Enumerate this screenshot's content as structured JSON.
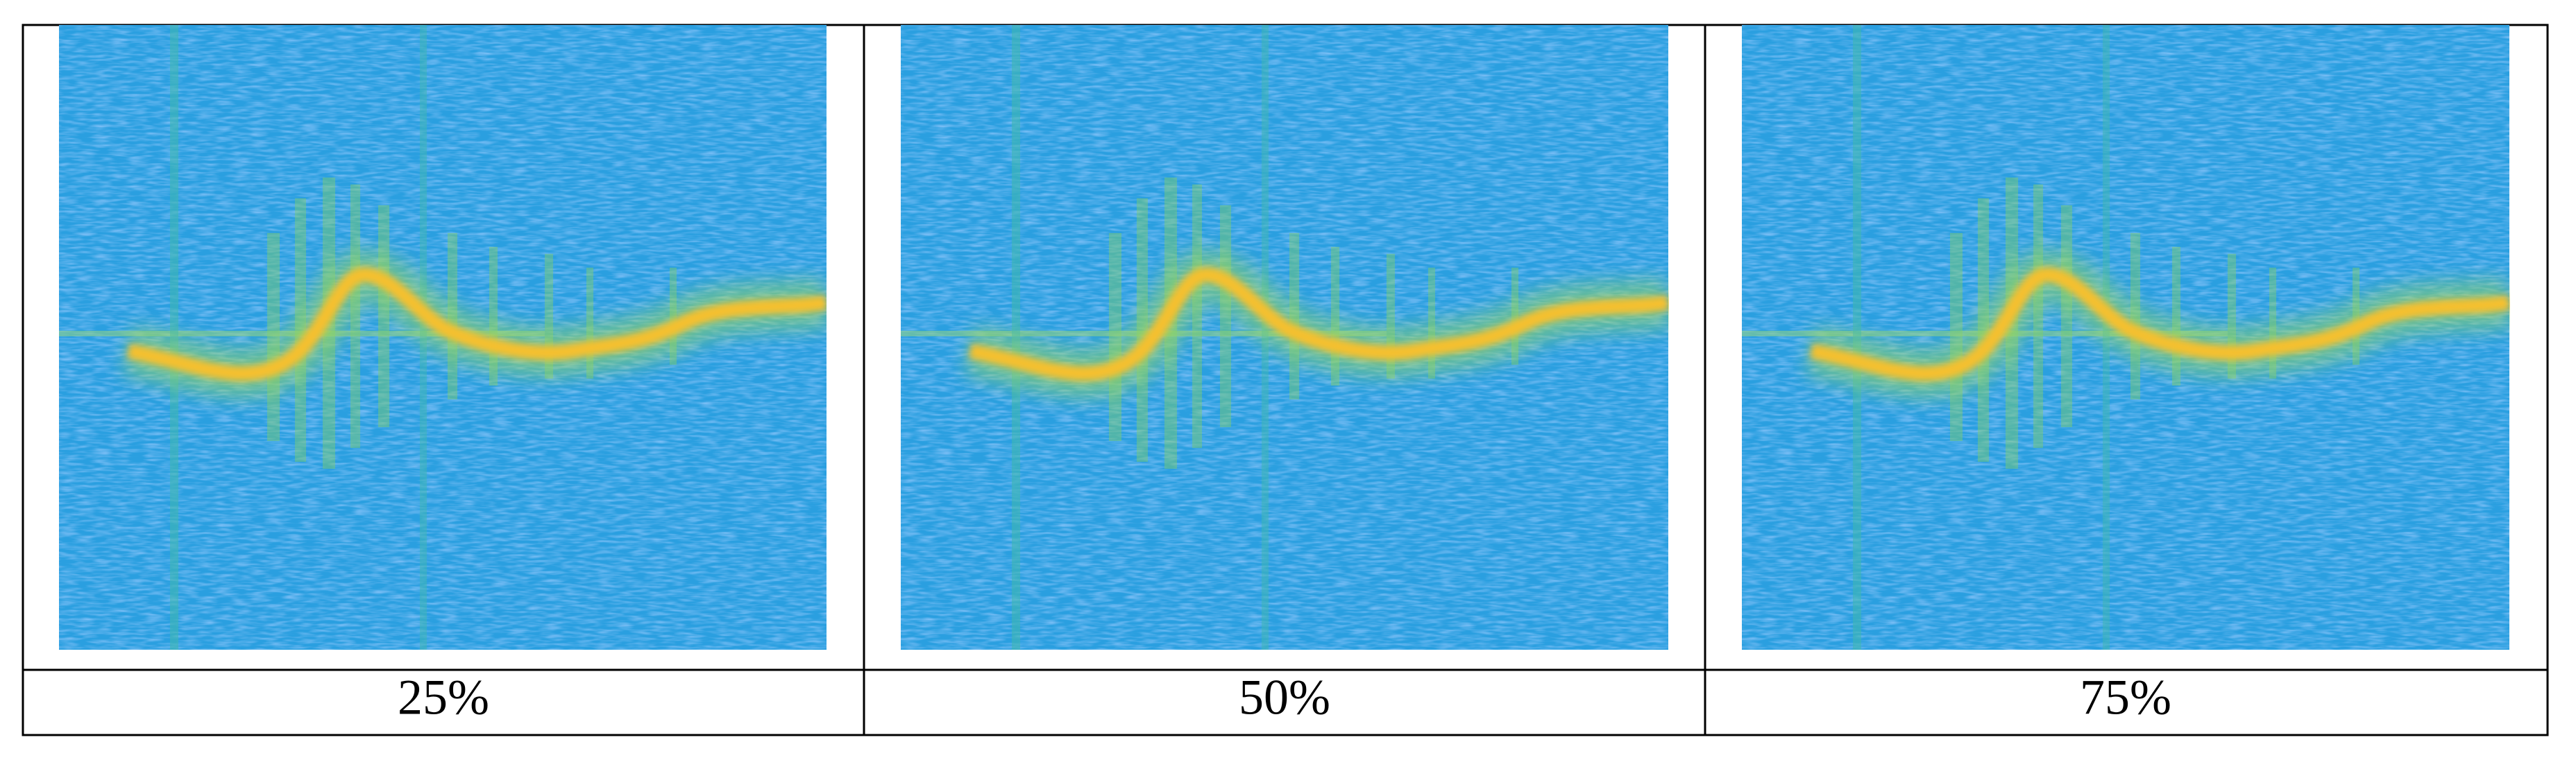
{
  "figure": {
    "panels": [
      {
        "caption": "25%"
      },
      {
        "caption": "50%"
      },
      {
        "caption": "75%"
      }
    ]
  }
}
